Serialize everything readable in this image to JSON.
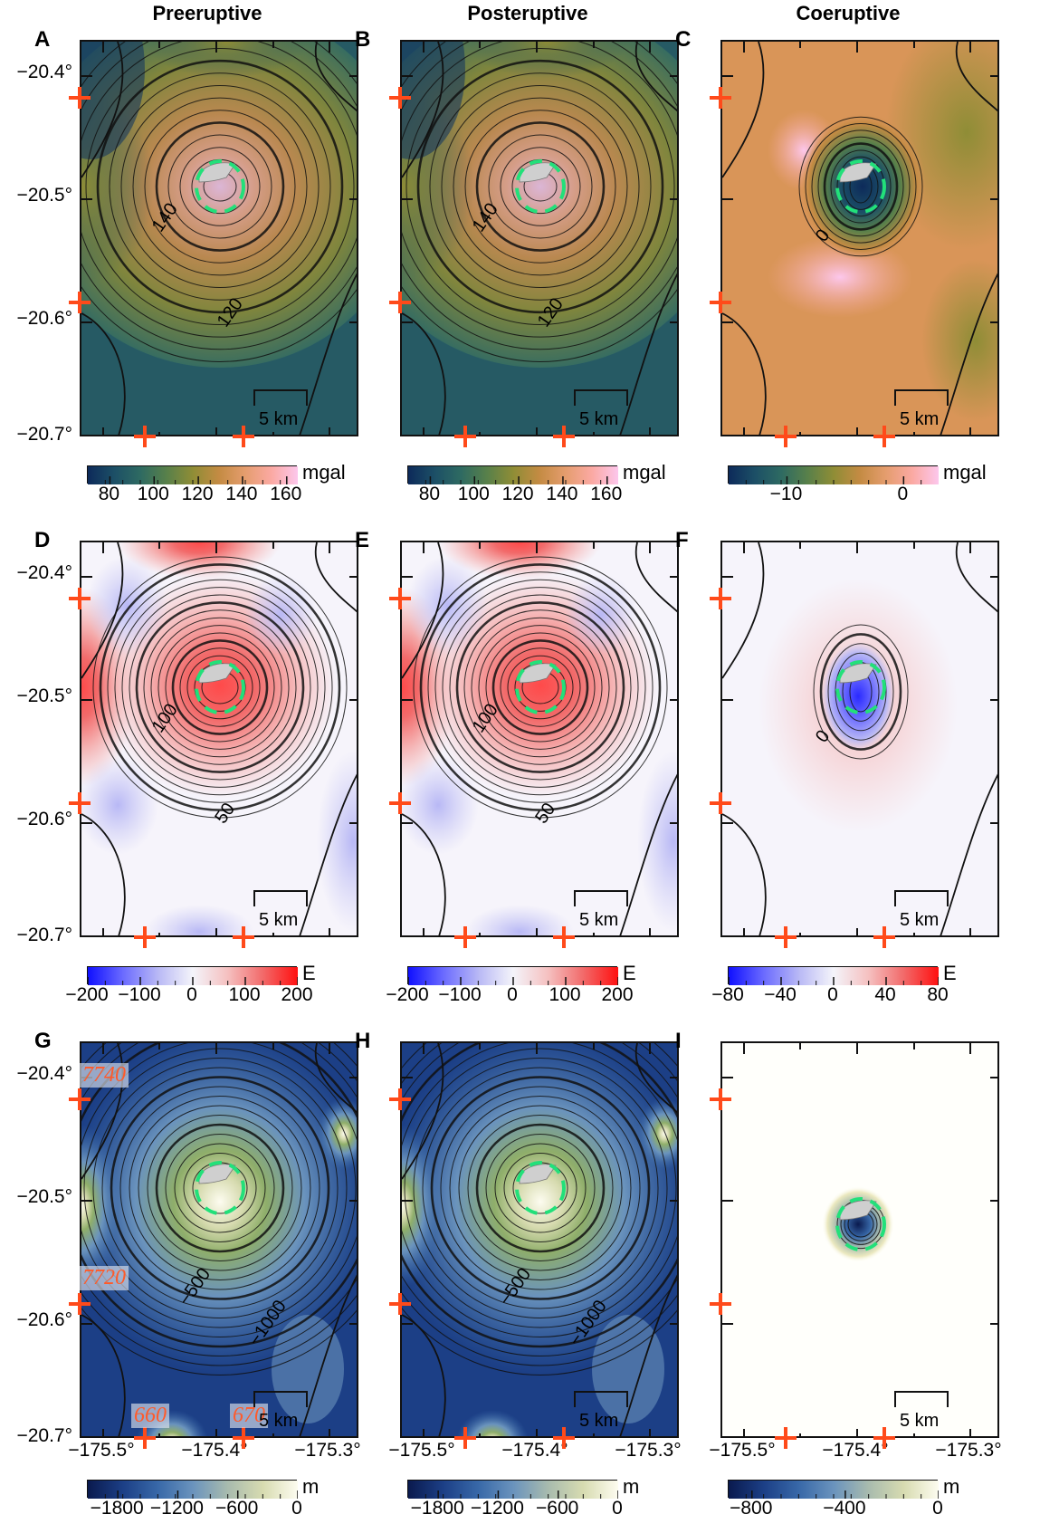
{
  "column_titles": [
    "Preeruptive",
    "Posteruptive",
    "Coeruptive"
  ],
  "chart_data": [
    {
      "panel": "A",
      "type": "heatmap",
      "column": "Preeruptive",
      "quantity": "gravity anomaly",
      "colorbar": {
        "unit": "mgal",
        "range": [
          70,
          165
        ],
        "ticks": [
          80,
          100,
          120,
          140,
          160
        ],
        "colormap": "batlow-like"
      },
      "contour_labels": [
        "140",
        "120"
      ],
      "scale_bar": "5 km"
    },
    {
      "panel": "B",
      "type": "heatmap",
      "column": "Posteruptive",
      "quantity": "gravity anomaly",
      "colorbar": {
        "unit": "mgal",
        "range": [
          70,
          165
        ],
        "ticks": [
          80,
          100,
          120,
          140,
          160
        ],
        "colormap": "batlow-like"
      },
      "contour_labels": [
        "140",
        "120"
      ],
      "scale_bar": "5 km"
    },
    {
      "panel": "C",
      "type": "heatmap",
      "column": "Coeruptive",
      "quantity": "gravity anomaly change",
      "colorbar": {
        "unit": "mgal",
        "range": [
          -15,
          3
        ],
        "ticks": [
          -10,
          0
        ],
        "colormap": "batlow-like"
      },
      "contour_labels": [
        "0"
      ],
      "scale_bar": "5 km"
    },
    {
      "panel": "D",
      "type": "heatmap",
      "column": "Preeruptive",
      "quantity": "gravity gradient",
      "colorbar": {
        "unit": "E",
        "range": [
          -200,
          200
        ],
        "ticks": [
          -200,
          -100,
          0,
          100,
          200
        ],
        "colormap": "blue-white-red"
      },
      "contour_labels": [
        "100",
        "50"
      ],
      "scale_bar": "5 km"
    },
    {
      "panel": "E",
      "type": "heatmap",
      "column": "Posteruptive",
      "quantity": "gravity gradient",
      "colorbar": {
        "unit": "E",
        "range": [
          -200,
          200
        ],
        "ticks": [
          -200,
          -100,
          0,
          100,
          200
        ],
        "colormap": "blue-white-red"
      },
      "contour_labels": [
        "100",
        "50"
      ],
      "scale_bar": "5 km"
    },
    {
      "panel": "F",
      "type": "heatmap",
      "column": "Coeruptive",
      "quantity": "gravity gradient change",
      "colorbar": {
        "unit": "E",
        "range": [
          -80,
          80
        ],
        "ticks": [
          -80,
          -40,
          0,
          40,
          80
        ],
        "colormap": "blue-white-red"
      },
      "contour_labels": [
        "0"
      ],
      "scale_bar": "5 km"
    },
    {
      "panel": "G",
      "type": "heatmap",
      "column": "Preeruptive",
      "quantity": "bathymetry",
      "colorbar": {
        "unit": "m",
        "range": [
          -2100,
          0
        ],
        "ticks": [
          -1800,
          -1200,
          -600,
          0
        ],
        "colormap": "oslo-like"
      },
      "contour_labels": [
        "-500",
        "-1000"
      ],
      "scale_bar": "5 km",
      "grid_annotations": [
        "7740",
        "7720",
        "660",
        "670"
      ]
    },
    {
      "panel": "H",
      "type": "heatmap",
      "column": "Posteruptive",
      "quantity": "bathymetry",
      "colorbar": {
        "unit": "m",
        "range": [
          -2100,
          0
        ],
        "ticks": [
          -1800,
          -1200,
          -600,
          0
        ],
        "colormap": "oslo-like"
      },
      "contour_labels": [
        "-500",
        "-1000"
      ],
      "scale_bar": "5 km"
    },
    {
      "panel": "I",
      "type": "heatmap",
      "column": "Coeruptive",
      "quantity": "bathymetry change",
      "colorbar": {
        "unit": "m",
        "range": [
          -900,
          0
        ],
        "ticks": [
          -800,
          -400,
          0
        ],
        "colormap": "oslo-like"
      },
      "contour_labels": [],
      "scale_bar": "5 km"
    }
  ],
  "axes": {
    "lat_ticks": [
      "−20.4°",
      "−20.5°",
      "−20.6°",
      "−20.7°"
    ],
    "lat_range": [
      -20.38,
      -20.7
    ],
    "lon_ticks": [
      "−175.5°",
      "−175.4°",
      "−175.3°"
    ],
    "lon_range": [
      -175.54,
      -175.28
    ]
  },
  "panel_labels": [
    "A",
    "B",
    "C",
    "D",
    "E",
    "F",
    "G",
    "H",
    "I"
  ],
  "colorbar_tick_labels": {
    "A": [
      "80",
      "100",
      "120",
      "140",
      "160"
    ],
    "B": [
      "80",
      "100",
      "120",
      "140",
      "160"
    ],
    "C": [
      "−10",
      "0"
    ],
    "D": [
      "−200",
      "−100",
      "0",
      "100",
      "200"
    ],
    "E": [
      "−200",
      "−100",
      "0",
      "100",
      "200"
    ],
    "F": [
      "−80",
      "−40",
      "0",
      "40",
      "80"
    ],
    "G": [
      "−1800",
      "−1200",
      "−600",
      "0"
    ],
    "H": [
      "−1800",
      "−1200",
      "−600",
      "0"
    ],
    "I": [
      "−800",
      "−400",
      "0"
    ]
  },
  "units": {
    "A": "mgal",
    "B": "mgal",
    "C": "mgal",
    "D": "E",
    "E": "E",
    "F": "E",
    "G": "m",
    "H": "m",
    "I": "m"
  },
  "contour_text": {
    "A": [
      "140",
      "120"
    ],
    "B": [
      "140",
      "120"
    ],
    "C": [
      "0"
    ],
    "D": [
      "100",
      "50"
    ],
    "E": [
      "100",
      "50"
    ],
    "F": [
      "0"
    ],
    "G": [
      "−500",
      "−1000"
    ],
    "H": [
      "−500",
      "−1000"
    ]
  },
  "scale_bar_label": "5 km",
  "grid_annotations": {
    "left_top": "7740",
    "left_bottom": "7720",
    "bottom_left": "660",
    "bottom_right": "670"
  },
  "colors": {
    "marker": "#ff4a1a",
    "caldera_rim": "#22e07a"
  }
}
